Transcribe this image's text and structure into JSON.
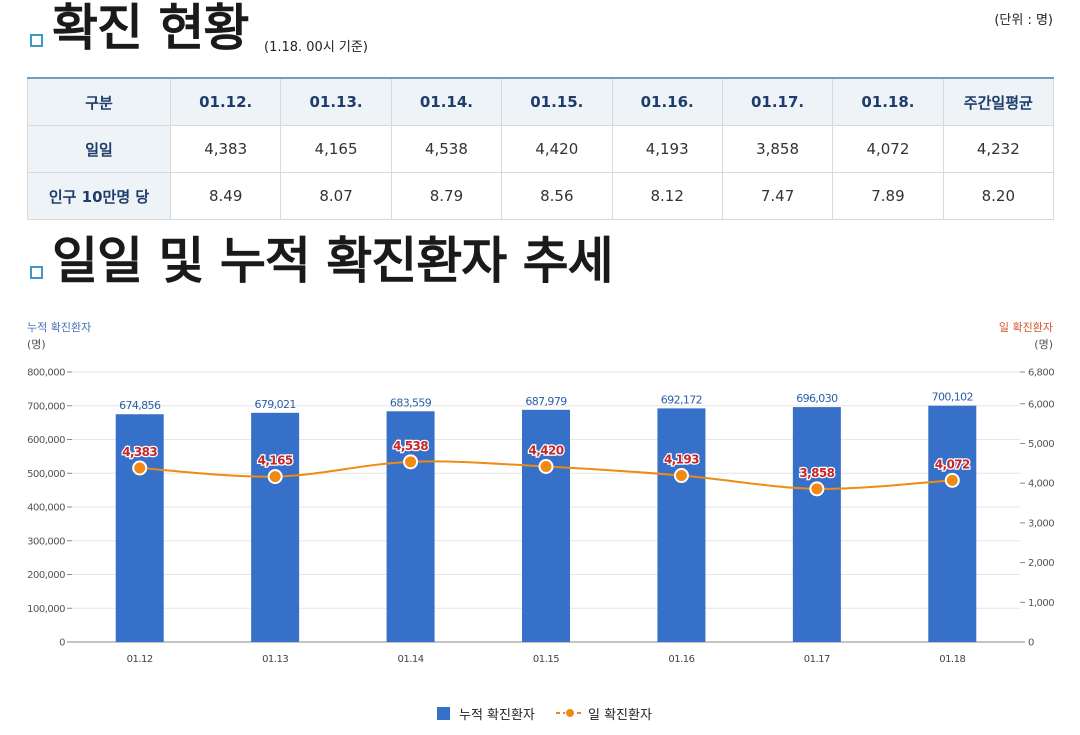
{
  "section1": {
    "title": "확진 현황",
    "basis": "(1.18. 00시 기준)",
    "unit": "(단위 : 명)"
  },
  "table": {
    "headers": [
      "구분",
      "01.12.",
      "01.13.",
      "01.14.",
      "01.15.",
      "01.16.",
      "01.17.",
      "01.18.",
      "주간일평균"
    ],
    "rows": [
      {
        "label": "일일",
        "values": [
          "4,383",
          "4,165",
          "4,538",
          "4,420",
          "4,193",
          "3,858",
          "4,072",
          "4,232"
        ]
      },
      {
        "label": "인구 10만명 당",
        "values": [
          "8.49",
          "8.07",
          "8.79",
          "8.56",
          "8.12",
          "7.47",
          "7.89",
          "8.20"
        ]
      }
    ]
  },
  "section2": {
    "title": "일일 및 누적 확진환자 추세"
  },
  "chart_data": {
    "type": "bar",
    "categories": [
      "01.12",
      "01.13",
      "01.14",
      "01.15",
      "01.16",
      "01.17",
      "01.18"
    ],
    "series": [
      {
        "name": "누적 확진환자",
        "type": "bar",
        "axis": "left",
        "color": "#3670c8",
        "values": [
          674856,
          679021,
          683559,
          687979,
          692172,
          696030,
          700102
        ],
        "labels": [
          "674,856",
          "679,021",
          "683,559",
          "687,979",
          "692,172",
          "696,030",
          "700,102"
        ]
      },
      {
        "name": "일 확진환자",
        "type": "line",
        "axis": "right",
        "color": "#f08a12",
        "values": [
          4383,
          4165,
          4538,
          4420,
          4193,
          3858,
          4072
        ],
        "labels": [
          "4,383",
          "4,165",
          "4,538",
          "4,420",
          "4,193",
          "3,858",
          "4,072"
        ]
      }
    ],
    "left_axis": {
      "title": "누적 확진환자",
      "unit": "(명)",
      "range": [
        0,
        800000
      ],
      "ticks": [
        "800,000",
        "700,000",
        "600,000",
        "500,000",
        "400,000",
        "300,000",
        "200,000",
        "100,000",
        "0"
      ]
    },
    "right_axis": {
      "title": "일 확진환자",
      "unit": "(명)",
      "range": [
        0,
        6800
      ],
      "ticks": [
        "6,800",
        "6,000",
        "5,000",
        "4,000",
        "3,000",
        "2,000",
        "1,000",
        "0"
      ],
      "tick_values": [
        6800,
        6000,
        5000,
        4000,
        3000,
        2000,
        1000,
        0
      ]
    },
    "legend": [
      "누적 확진환자",
      "일 확진환자"
    ]
  }
}
